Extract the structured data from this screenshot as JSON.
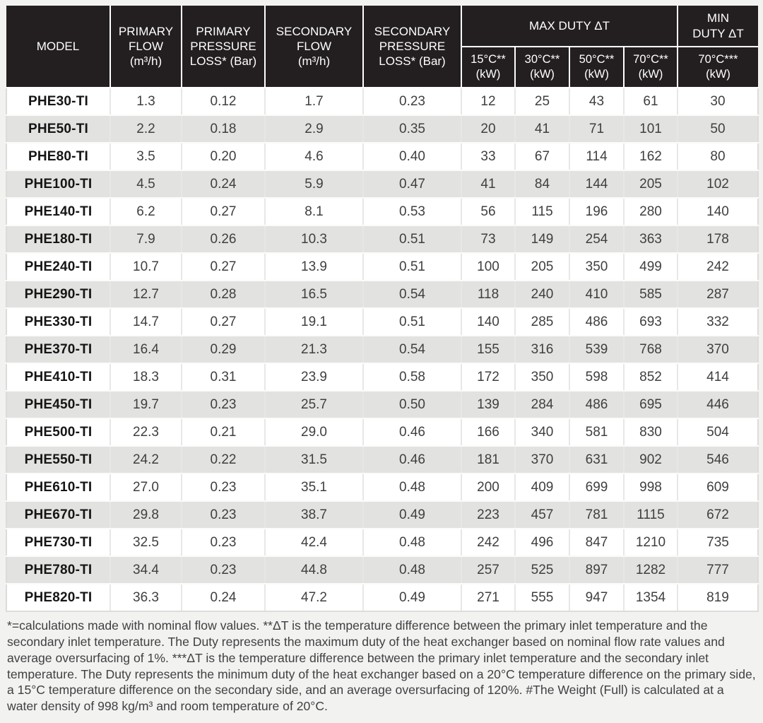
{
  "table": {
    "header": {
      "model": "MODEL",
      "primary_flow": "PRIMARY\nFLOW\n(m³/h)",
      "primary_pressure_loss": "PRIMARY\nPRESSURE\nLOSS* (Bar)",
      "secondary_flow": "SECONDARY\nFLOW\n(m³/h)",
      "secondary_pressure_loss": "SECONDARY\nPRESSURE\nLOSS* (Bar)",
      "max_duty": "MAX DUTY ΔT",
      "min_duty": "MIN\nDUTY ΔT",
      "sub_15": "15°C**\n(kW)",
      "sub_30": "30°C**\n(kW)",
      "sub_50": "50°C**\n(kW)",
      "sub_70": "70°C**\n(kW)",
      "sub_min_70": "70°C***\n(kW)"
    },
    "rows": [
      {
        "model": "PHE30-TI",
        "values": [
          "1.3",
          "0.12",
          "1.7",
          "0.23",
          "12",
          "25",
          "43",
          "61",
          "30"
        ]
      },
      {
        "model": "PHE50-TI",
        "values": [
          "2.2",
          "0.18",
          "2.9",
          "0.35",
          "20",
          "41",
          "71",
          "101",
          "50"
        ]
      },
      {
        "model": "PHE80-TI",
        "values": [
          "3.5",
          "0.20",
          "4.6",
          "0.40",
          "33",
          "67",
          "114",
          "162",
          "80"
        ]
      },
      {
        "model": "PHE100-TI",
        "values": [
          "4.5",
          "0.24",
          "5.9",
          "0.47",
          "41",
          "84",
          "144",
          "205",
          "102"
        ]
      },
      {
        "model": "PHE140-TI",
        "values": [
          "6.2",
          "0.27",
          "8.1",
          "0.53",
          "56",
          "115",
          "196",
          "280",
          "140"
        ]
      },
      {
        "model": "PHE180-TI",
        "values": [
          "7.9",
          "0.26",
          "10.3",
          "0.51",
          "73",
          "149",
          "254",
          "363",
          "178"
        ]
      },
      {
        "model": "PHE240-TI",
        "values": [
          "10.7",
          "0.27",
          "13.9",
          "0.51",
          "100",
          "205",
          "350",
          "499",
          "242"
        ]
      },
      {
        "model": "PHE290-TI",
        "values": [
          "12.7",
          "0.28",
          "16.5",
          "0.54",
          "118",
          "240",
          "410",
          "585",
          "287"
        ]
      },
      {
        "model": "PHE330-TI",
        "values": [
          "14.7",
          "0.27",
          "19.1",
          "0.51",
          "140",
          "285",
          "486",
          "693",
          "332"
        ]
      },
      {
        "model": "PHE370-TI",
        "values": [
          "16.4",
          "0.29",
          "21.3",
          "0.54",
          "155",
          "316",
          "539",
          "768",
          "370"
        ]
      },
      {
        "model": "PHE410-TI",
        "values": [
          "18.3",
          "0.31",
          "23.9",
          "0.58",
          "172",
          "350",
          "598",
          "852",
          "414"
        ]
      },
      {
        "model": "PHE450-TI",
        "values": [
          "19.7",
          "0.23",
          "25.7",
          "0.50",
          "139",
          "284",
          "486",
          "695",
          "446"
        ]
      },
      {
        "model": "PHE500-TI",
        "values": [
          "22.3",
          "0.21",
          "29.0",
          "0.46",
          "166",
          "340",
          "581",
          "830",
          "504"
        ]
      },
      {
        "model": "PHE550-TI",
        "values": [
          "24.2",
          "0.22",
          "31.5",
          "0.46",
          "181",
          "370",
          "631",
          "902",
          "546"
        ]
      },
      {
        "model": "PHE610-TI",
        "values": [
          "27.0",
          "0.23",
          "35.1",
          "0.48",
          "200",
          "409",
          "699",
          "998",
          "609"
        ]
      },
      {
        "model": "PHE670-TI",
        "values": [
          "29.8",
          "0.23",
          "38.7",
          "0.49",
          "223",
          "457",
          "781",
          "1115",
          "672"
        ]
      },
      {
        "model": "PHE730-TI",
        "values": [
          "32.5",
          "0.23",
          "42.4",
          "0.48",
          "242",
          "496",
          "847",
          "1210",
          "735"
        ]
      },
      {
        "model": "PHE780-TI",
        "values": [
          "34.4",
          "0.23",
          "44.8",
          "0.48",
          "257",
          "525",
          "897",
          "1282",
          "777"
        ]
      },
      {
        "model": "PHE820-TI",
        "values": [
          "36.3",
          "0.24",
          "47.2",
          "0.49",
          "271",
          "555",
          "947",
          "1354",
          "819"
        ]
      }
    ]
  },
  "footnote": "*=calculations made with nominal flow values. **ΔT is the temperature difference between the primary inlet temperature and the secondary inlet temperature. The Duty represents the maximum duty of the heat exchanger based on nominal flow rate values and average oversurfacing of 1%. ***ΔT is the temperature difference between the primary inlet temperature and the secondary inlet temperature. The Duty represents the minimum duty of the heat exchanger based on a 20°C temperature difference on the primary side, a 15°C temperature difference on the secondary side, and an average oversurfacing of 120%. #The Weight (Full) is calculated at a water density of 998 kg/m³ and room temperature of 20°C.",
  "colors": {
    "header_bg": "#231f20",
    "header_text": "#ffffff",
    "row_alt_bg": "#e2e2e1",
    "page_bg": "#f2f2f1"
  }
}
